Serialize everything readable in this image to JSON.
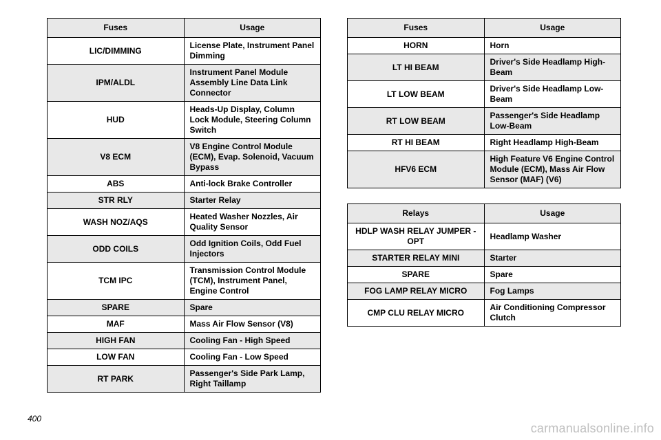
{
  "pageNumber": "400",
  "watermark": "carmanualsonline.info",
  "tables": {
    "left": {
      "headers": [
        "Fuses",
        "Usage"
      ],
      "rows": [
        [
          "LIC/DIMMING",
          "License Plate, Instrument Panel Dimming"
        ],
        [
          "IPM/ALDL",
          "Instrument Panel Module Assembly Line Data Link Connector"
        ],
        [
          "HUD",
          "Heads-Up Display, Column Lock Module, Steering Column Switch"
        ],
        [
          "V8 ECM",
          "V8 Engine Control Module (ECM), Evap. Solenoid, Vacuum Bypass"
        ],
        [
          "ABS",
          "Anti-lock Brake Controller"
        ],
        [
          "STR RLY",
          "Starter Relay"
        ],
        [
          "WASH NOZ/AQS",
          "Heated Washer Nozzles, Air Quality Sensor"
        ],
        [
          "ODD COILS",
          "Odd Ignition Coils, Odd Fuel Injectors"
        ],
        [
          "TCM IPC",
          "Transmission Control Module (TCM), Instrument Panel, Engine Control"
        ],
        [
          "SPARE",
          "Spare"
        ],
        [
          "MAF",
          "Mass Air Flow Sensor (V8)"
        ],
        [
          "HIGH FAN",
          "Cooling Fan - High Speed"
        ],
        [
          "LOW FAN",
          "Cooling Fan - Low Speed"
        ],
        [
          "RT PARK",
          "Passenger's Side Park Lamp, Right Taillamp"
        ]
      ]
    },
    "rightTop": {
      "headers": [
        "Fuses",
        "Usage"
      ],
      "rows": [
        [
          "HORN",
          "Horn"
        ],
        [
          "LT HI BEAM",
          "Driver's Side Headlamp High-Beam"
        ],
        [
          "LT LOW BEAM",
          "Driver's Side Headlamp Low-Beam"
        ],
        [
          "RT LOW BEAM",
          "Passenger's Side Headlamp Low-Beam"
        ],
        [
          "RT HI BEAM",
          "Right Headlamp High-Beam"
        ],
        [
          "HFV6 ECM",
          "High Feature V6 Engine Control Module (ECM), Mass Air Flow Sensor (MAF) (V6)"
        ]
      ]
    },
    "rightBottom": {
      "headers": [
        "Relays",
        "Usage"
      ],
      "rows": [
        [
          "HDLP WASH RELAY JUMPER -OPT",
          "Headlamp Washer"
        ],
        [
          "STARTER RELAY MINI",
          "Starter"
        ],
        [
          "SPARE",
          "Spare"
        ],
        [
          "FOG LAMP RELAY MICRO",
          "Fog Lamps"
        ],
        [
          "CMP CLU RELAY MICRO",
          "Air Conditioning Compressor Clutch"
        ]
      ]
    }
  }
}
